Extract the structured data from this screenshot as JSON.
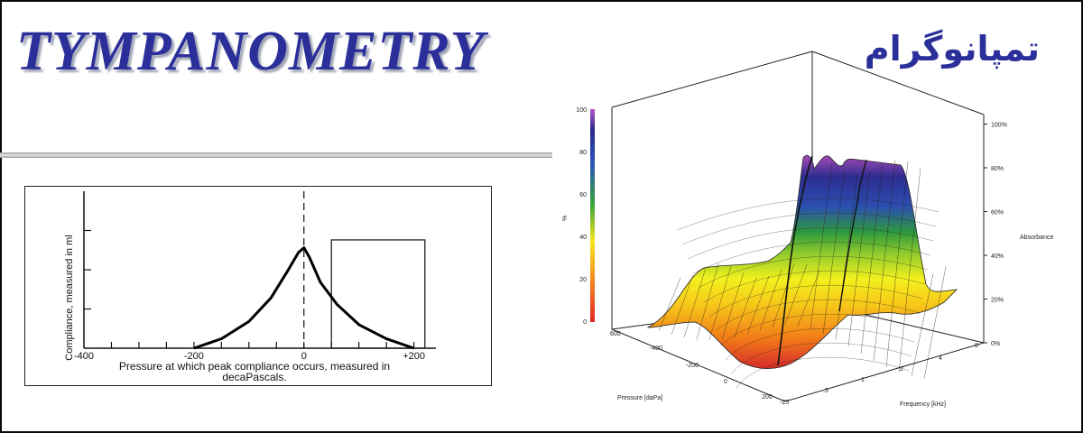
{
  "header": {
    "title": "TYMPANOMETRY",
    "persian_title": "تمپانوگرام"
  },
  "chart_data": [
    {
      "type": "line",
      "ylabel": "Compliance, measured in ml",
      "xlabel": "Pressure at which peak compliance occurs, measured in decaPascals.",
      "xlabel_lines": [
        "Pressure at which peak compliance occurs, measured in",
        "decaPascals."
      ],
      "x_ticks": [
        "-400",
        "-200",
        "0",
        "+200"
      ],
      "xlim": [
        -400,
        240
      ],
      "ylim": [
        0,
        1
      ],
      "grid": false,
      "series": [
        {
          "x": [
            -200,
            -150,
            -100,
            -60,
            -30,
            -10,
            0,
            10,
            30,
            60,
            100,
            150,
            200
          ],
          "y": [
            0.0,
            0.06,
            0.17,
            0.32,
            0.49,
            0.61,
            0.64,
            0.58,
            0.42,
            0.28,
            0.15,
            0.06,
            0.0
          ]
        }
      ],
      "reference_line_x": 0,
      "annotation_box_x": [
        50,
        220
      ],
      "annotation_box_y": [
        0,
        0.69
      ]
    },
    {
      "type": "surface",
      "left_axis_ticks": [
        "0",
        "20",
        "40",
        "60",
        "80",
        "100"
      ],
      "left_axis_label": "%",
      "right_axis_ticks": [
        "0%",
        "20%",
        "40%",
        "60%",
        "80%",
        "100%"
      ],
      "right_axis_label": "Absorbance",
      "pressure_label": "Pressure [daPa]",
      "pressure_ticks": [
        "600",
        "-400",
        "-200",
        "0",
        "200"
      ],
      "frequency_label": "Frequency [kHz]",
      "frequency_ticks": [
        "-25",
        ".5",
        "1",
        "2",
        "4",
        "8"
      ],
      "colorscale": [
        "#d42a2a",
        "#f27a18",
        "#f6c81a",
        "#f4f01e",
        "#8fcb2c",
        "#2e9a3e",
        "#2c4fb0",
        "#2d2d8f",
        "#a64bb8"
      ]
    }
  ]
}
